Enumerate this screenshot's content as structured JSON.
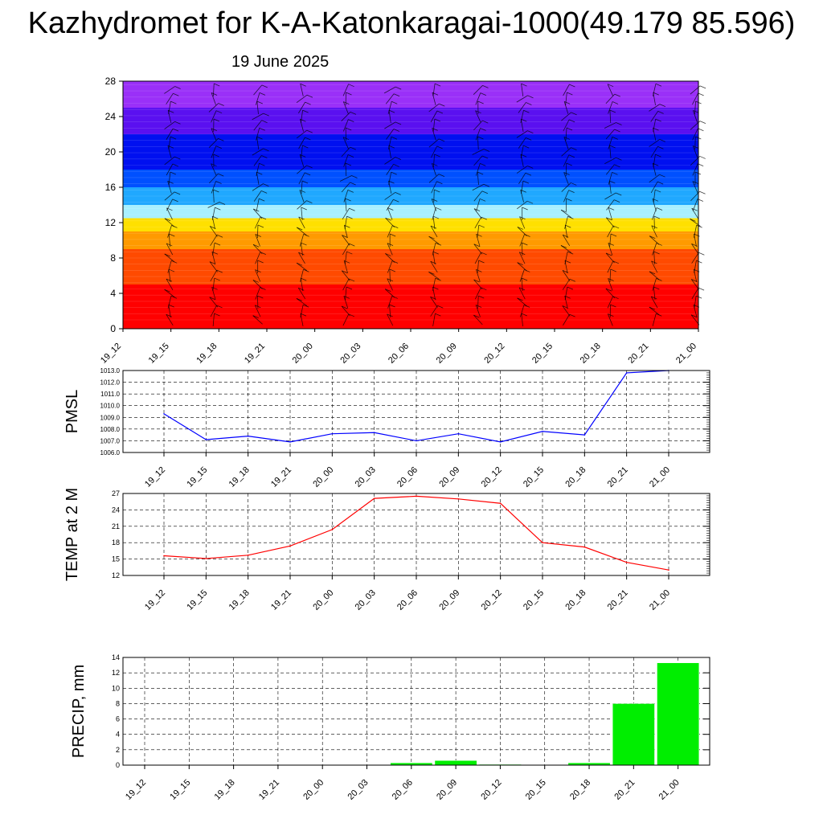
{
  "header": {
    "title": "Kazhydromet for K-A-Katonkaragai-1000(49.179 85.596)",
    "date": "19 June 2025"
  },
  "colors": {
    "pmsl_line": "#0000ff",
    "temp_line": "#ff0000",
    "precip_bar": "#00ee00",
    "grid": "#000000"
  },
  "chart_data": [
    {
      "type": "heatmap",
      "title": "",
      "xlabel": "",
      "ylabel": "",
      "x": [
        "19_12",
        "19_15",
        "19_18",
        "19_21",
        "20_00",
        "20_03",
        "20_06",
        "20_09",
        "20_12",
        "20_15",
        "20_18",
        "20_21",
        "21_00"
      ],
      "ylim": [
        0,
        28
      ],
      "yticks": [
        0,
        4,
        8,
        12,
        16,
        20,
        24,
        28
      ],
      "bands": [
        {
          "from": 0,
          "to": 5,
          "color": "#ff0000"
        },
        {
          "from": 5,
          "to": 9,
          "color": "#ff4a00"
        },
        {
          "from": 9,
          "to": 11,
          "color": "#ff9a00"
        },
        {
          "from": 11,
          "to": 12.5,
          "color": "#ffe000"
        },
        {
          "from": 12.5,
          "to": 14,
          "color": "#a8f0ff"
        },
        {
          "from": 14,
          "to": 16,
          "color": "#20a8ff"
        },
        {
          "from": 16,
          "to": 18,
          "color": "#0050ff"
        },
        {
          "from": 18,
          "to": 22,
          "color": "#0010f0"
        },
        {
          "from": 22,
          "to": 25,
          "color": "#5a10f0"
        },
        {
          "from": 25,
          "to": 28,
          "color": "#9a30f8"
        }
      ],
      "wind_barbs": true
    },
    {
      "type": "line",
      "ylabel": "PMSL",
      "xlabel": "",
      "x": [
        "19_12",
        "19_15",
        "19_18",
        "19_21",
        "20_00",
        "20_03",
        "20_06",
        "20_09",
        "20_12",
        "20_15",
        "20_18",
        "20_21",
        "21_00"
      ],
      "series": [
        {
          "values": [
            1009.3,
            1007.1,
            1007.4,
            1006.9,
            1007.6,
            1007.7,
            1007.0,
            1007.6,
            1006.9,
            1007.8,
            1007.5,
            1012.8,
            1013.0
          ]
        }
      ],
      "ylim": [
        1006.0,
        1013.0
      ],
      "yticks": [
        "1006.0",
        "1007.0",
        "1008.0",
        "1009.0",
        "1010.0",
        "1011.0",
        "1012.0",
        "1013.0"
      ],
      "grid": true
    },
    {
      "type": "line",
      "ylabel": "TEMP at 2 M",
      "xlabel": "",
      "x": [
        "19_12",
        "19_15",
        "19_18",
        "19_21",
        "20_00",
        "20_03",
        "20_06",
        "20_09",
        "20_12",
        "20_15",
        "20_18",
        "20_21",
        "21_00"
      ],
      "series": [
        {
          "values": [
            15.6,
            15.1,
            15.7,
            17.4,
            20.4,
            26.1,
            26.5,
            26.0,
            25.2,
            18.0,
            17.2,
            14.4,
            13.0
          ]
        }
      ],
      "ylim": [
        12,
        27
      ],
      "yticks": [
        "12",
        "15",
        "18",
        "21",
        "24",
        "27"
      ],
      "grid": true
    },
    {
      "type": "bar",
      "ylabel": "PRECIP, mm",
      "xlabel": "",
      "categories": [
        "19_12",
        "19_15",
        "19_18",
        "19_21",
        "20_00",
        "20_03",
        "20_06",
        "20_09",
        "20_12",
        "20_15",
        "20_18",
        "20_21",
        "21_00"
      ],
      "values": [
        0,
        0,
        0,
        0,
        0,
        0,
        0.3,
        0.6,
        0.1,
        0,
        0.3,
        8.0,
        13.3
      ],
      "ylim": [
        0,
        14
      ],
      "yticks": [
        "0",
        "2",
        "4",
        "6",
        "8",
        "10",
        "12",
        "14"
      ],
      "grid": true
    }
  ]
}
